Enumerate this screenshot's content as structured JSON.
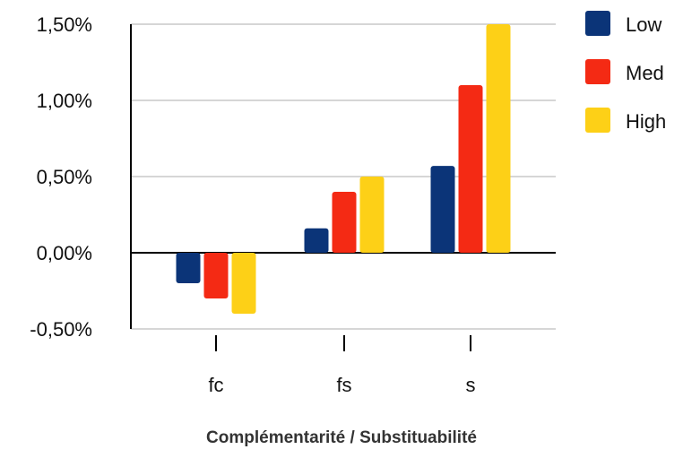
{
  "chart_data": {
    "type": "bar",
    "title": "",
    "xlabel": "Complémentarité / Substituabilité",
    "ylabel": "",
    "categories": [
      "fc",
      "fs",
      "s"
    ],
    "series": [
      {
        "name": "Low",
        "color": "#0b3478",
        "values": [
          -0.2,
          0.16,
          0.57
        ]
      },
      {
        "name": "Med",
        "color": "#f42a14",
        "values": [
          -0.3,
          0.4,
          1.1
        ]
      },
      {
        "name": "High",
        "color": "#fdd017",
        "values": [
          -0.4,
          0.5,
          1.5
        ]
      }
    ],
    "ylim": [
      -0.5,
      1.5
    ],
    "yticks": [
      -0.5,
      0.0,
      0.5,
      1.0,
      1.5
    ],
    "ytick_labels": [
      "-0,50%",
      "0,00%",
      "0,50%",
      "1,00%",
      "1,50%"
    ],
    "grid": true,
    "legend_position": "top-right"
  }
}
